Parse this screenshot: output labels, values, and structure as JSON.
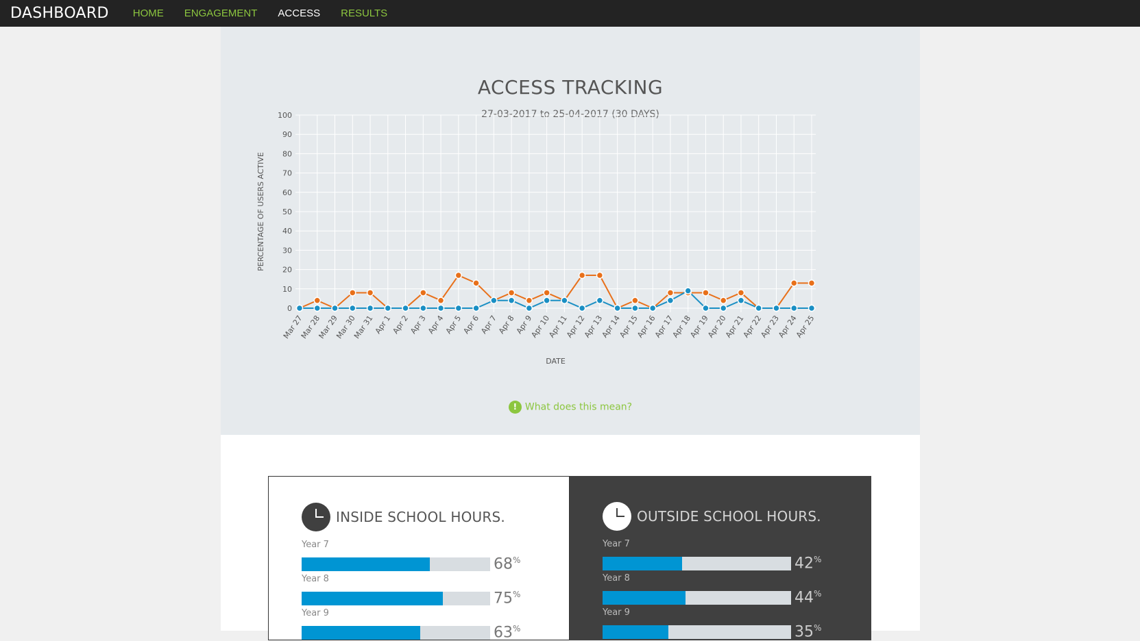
{
  "nav": {
    "brand": "DASHBOARD",
    "items": [
      {
        "label": "HOME",
        "active": false
      },
      {
        "label": "ENGAGEMENT",
        "active": false
      },
      {
        "label": "ACCESS",
        "active": true
      },
      {
        "label": "RESULTS",
        "active": false
      }
    ]
  },
  "chart_section": {
    "title": "ACCESS TRACKING",
    "subtitle": "27-03-2017 to 25-04-2017 (30 DAYS)",
    "info_link": "What does this mean?"
  },
  "chart_data": {
    "type": "line",
    "xlabel": "DATE",
    "ylabel": "PERCENTAGE OF USERS ACTIVE",
    "ylim": [
      0,
      100
    ],
    "yticks": [
      0,
      10,
      20,
      30,
      40,
      50,
      60,
      70,
      80,
      90,
      100
    ],
    "grid": true,
    "categories": [
      "Mar 27",
      "Mar 28",
      "Mar 29",
      "Mar 30",
      "Mar 31",
      "Apr 1",
      "Apr 2",
      "Apr 3",
      "Apr 4",
      "Apr 5",
      "Apr 6",
      "Apr 7",
      "Apr 8",
      "Apr 9",
      "Apr 10",
      "Apr 11",
      "Apr 12",
      "Apr 13",
      "Apr 14",
      "Apr 15",
      "Apr 16",
      "Apr 17",
      "Apr 18",
      "Apr 19",
      "Apr 20",
      "Apr 21",
      "Apr 22",
      "Apr 23",
      "Apr 24",
      "Apr 25"
    ],
    "series": [
      {
        "color": "#e8701a",
        "values": [
          0,
          4,
          0,
          8,
          8,
          0,
          0,
          8,
          4,
          17,
          13,
          4,
          8,
          4,
          8,
          4,
          17,
          17,
          0,
          4,
          0,
          8,
          8,
          8,
          4,
          8,
          0,
          0,
          13,
          13
        ]
      },
      {
        "color": "#1a8fc4",
        "values": [
          0,
          0,
          0,
          0,
          0,
          0,
          0,
          0,
          0,
          0,
          0,
          4,
          4,
          0,
          4,
          4,
          0,
          4,
          0,
          0,
          0,
          4,
          9,
          0,
          0,
          4,
          0,
          0,
          0,
          0
        ]
      }
    ]
  },
  "inside": {
    "title": "INSIDE SCHOOL HOURS.",
    "rows": [
      {
        "label": "Year 7",
        "value": 68,
        "value_text": "68"
      },
      {
        "label": "Year 8",
        "value": 75,
        "value_text": "75"
      },
      {
        "label": "Year 9",
        "value": 63,
        "value_text": "63"
      }
    ]
  },
  "outside": {
    "title": "OUTSIDE SCHOOL HOURS.",
    "rows": [
      {
        "label": "Year 7",
        "value": 42,
        "value_text": "42"
      },
      {
        "label": "Year 8",
        "value": 44,
        "value_text": "44"
      },
      {
        "label": "Year 9",
        "value": 35,
        "value_text": "35"
      }
    ]
  },
  "percent_symbol": "%"
}
